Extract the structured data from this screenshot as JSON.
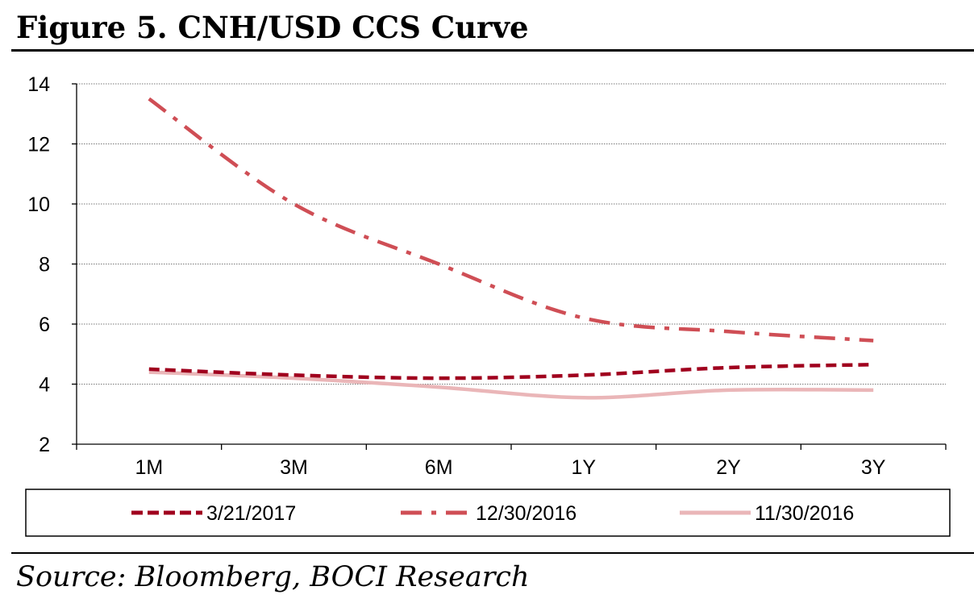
{
  "figure": {
    "title": "Figure 5. CNH/USD CCS Curve",
    "source": "Source: Bloomberg, BOCI Research"
  },
  "colors": {
    "series_dark": "#a0001e",
    "series_mid": "#cf4e55",
    "series_light": "#eab6b8",
    "grid": "#777777",
    "axis": "#000000"
  },
  "chart_data": {
    "type": "line",
    "title": "",
    "xlabel": "",
    "ylabel": "",
    "categories": [
      "1M",
      "3M",
      "6M",
      "1Y",
      "2Y",
      "3Y"
    ],
    "ylim": [
      2,
      14
    ],
    "yticks": [
      2,
      4,
      6,
      8,
      10,
      12,
      14
    ],
    "grid": true,
    "legend_position": "bottom",
    "series": [
      {
        "name": "3/21/2017",
        "style": "dashed",
        "color": "#a0001e",
        "values": [
          4.5,
          4.3,
          4.2,
          4.3,
          4.55,
          4.65
        ]
      },
      {
        "name": "12/30/2016",
        "style": "dash-dot",
        "color": "#cf4e55",
        "values": [
          13.5,
          10.0,
          8.0,
          6.2,
          5.75,
          5.45
        ]
      },
      {
        "name": "11/30/2016",
        "style": "solid",
        "color": "#eab6b8",
        "values": [
          4.4,
          4.2,
          3.9,
          3.55,
          3.8,
          3.8
        ]
      }
    ]
  }
}
